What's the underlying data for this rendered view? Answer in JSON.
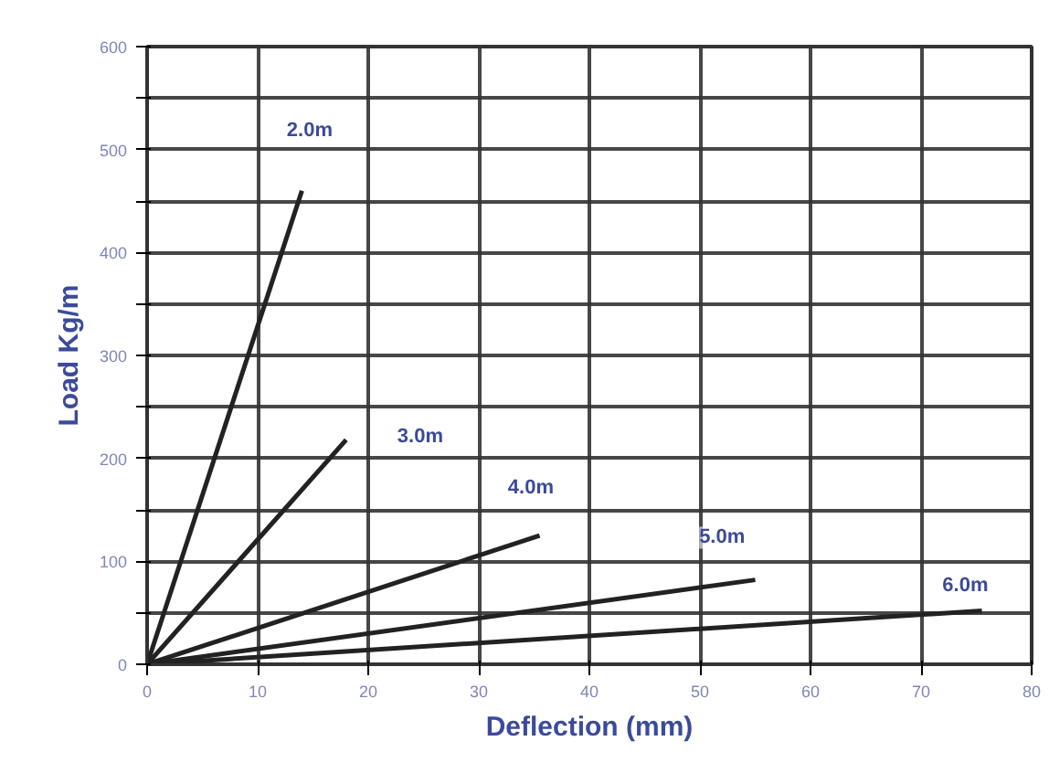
{
  "chart_data": {
    "type": "line",
    "xlabel": "Deflection (mm)",
    "ylabel": "Load Kg/m",
    "xlim": [
      0,
      80
    ],
    "ylim": [
      0,
      600
    ],
    "xticks": [
      0,
      10,
      20,
      30,
      40,
      50,
      60,
      70,
      80
    ],
    "yticks": [
      0,
      {
        "value": 50,
        "label": null
      },
      100,
      {
        "value": 150,
        "label": null
      },
      200,
      {
        "value": 250,
        "label": null
      },
      300,
      {
        "value": 350,
        "label": null
      },
      400,
      {
        "value": 450,
        "label": null
      },
      500,
      {
        "value": 550,
        "label": null
      },
      600
    ],
    "grid": true,
    "marker": "none",
    "line_style": "solid",
    "series": [
      {
        "color": "#222222",
        "x": [
          0,
          14
        ],
        "values": [
          0,
          460
        ]
      },
      {
        "color": "#222222",
        "x": [
          0,
          18
        ],
        "values": [
          0,
          218
        ]
      },
      {
        "color": "#222222",
        "x": [
          0,
          35.5
        ],
        "values": [
          0,
          125
        ]
      },
      {
        "color": "#222222",
        "x": [
          0,
          55
        ],
        "values": [
          0,
          82
        ]
      },
      {
        "color": "#222222",
        "x": [
          0,
          75.5
        ],
        "values": [
          0,
          52
        ]
      }
    ],
    "annotations": [
      {
        "text": "2.0m",
        "x": 14.7,
        "y": 518
      },
      {
        "text": "3.0m",
        "x": 24.7,
        "y": 221
      },
      {
        "text": "4.0m",
        "x": 34.7,
        "y": 171
      },
      {
        "text": "5.0m",
        "x": 52,
        "y": 123
      },
      {
        "text": "6.0m",
        "x": 74,
        "y": 76
      }
    ]
  }
}
